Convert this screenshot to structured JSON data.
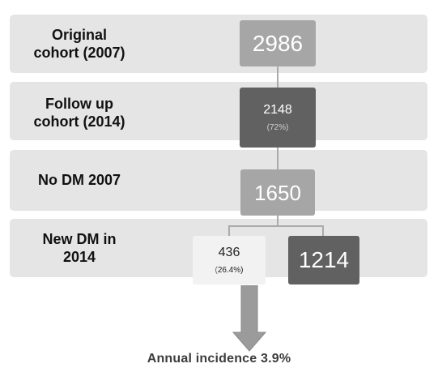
{
  "rows": [
    {
      "label_line1": "Original",
      "label_line2": "cohort (2007)"
    },
    {
      "label_line1": "Follow up",
      "label_line2": "cohort (2014)"
    },
    {
      "label_line1": "No DM 2007",
      "label_line2": ""
    },
    {
      "label_line1": "New DM in",
      "label_line2": "2014"
    }
  ],
  "boxes": {
    "original": {
      "value": "2986"
    },
    "follow_up": {
      "value": "2148",
      "pct": "(72%)"
    },
    "no_dm": {
      "value": "1650"
    },
    "new_dm": {
      "value": "436",
      "pct_open": "(",
      "pct_num": "26.4%)"
    },
    "no_new_dm": {
      "value": "1214"
    }
  },
  "footer": "Annual incidence 3.9%",
  "colors": {
    "band": "#e5e5e5",
    "light_gray_box": "#a6a6a6",
    "dark_gray_box": "#616161",
    "white_box": "#f2f2f2",
    "connector": "#aaaaaa",
    "arrow": "#9b9b9b"
  }
}
